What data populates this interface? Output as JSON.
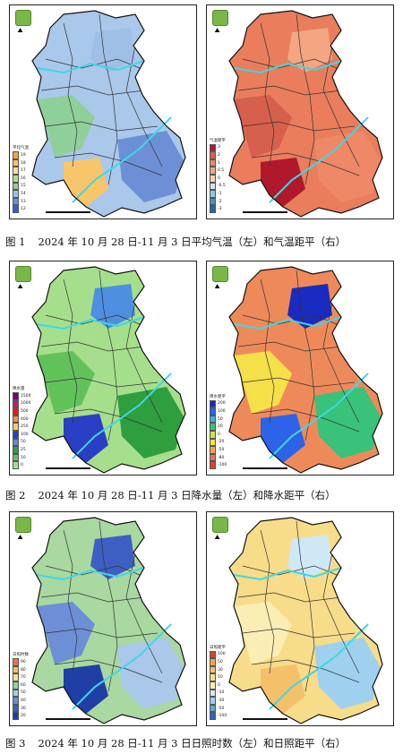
{
  "figures": [
    {
      "caption_label": "图 1",
      "caption_text": "2024 年 10 月 28 日-11 月 3 日平均气温（左）和气温距平（右）",
      "left": {
        "legend_title": "平均气温",
        "legend": [
          {
            "value": "19",
            "color": "#f4a640"
          },
          {
            "value": "18",
            "color": "#f7c66a"
          },
          {
            "value": "17",
            "color": "#f2e28c"
          },
          {
            "value": "16",
            "color": "#b7d98b"
          },
          {
            "value": "15",
            "color": "#8fcf9a"
          },
          {
            "value": "14",
            "color": "#9fbfe6"
          },
          {
            "value": "13",
            "color": "#6d8fd6"
          },
          {
            "value": "12",
            "color": "#3d5fc4"
          }
        ],
        "fill": "#a9c8ea",
        "patches": [
          "#8fcf9a",
          "#9fbfe6",
          "#f7c66a",
          "#6d8fd6"
        ]
      },
      "right": {
        "legend_title": "气温距平",
        "legend": [
          {
            "value": "3",
            "color": "#b2182b"
          },
          {
            "value": "2",
            "color": "#d6604d"
          },
          {
            "value": "1",
            "color": "#ee8866"
          },
          {
            "value": "0.5",
            "color": "#f4a582"
          },
          {
            "value": "0",
            "color": "#fbd0b9"
          },
          {
            "value": "-0.5",
            "color": "#d1e5f0"
          },
          {
            "value": "-1",
            "color": "#92c5de"
          },
          {
            "value": "-2",
            "color": "#4393c3"
          },
          {
            "value": "-3",
            "color": "#2166ac"
          }
        ],
        "fill": "#e97d5c",
        "patches": [
          "#d6604d",
          "#f4a582",
          "#b2182b",
          "#ee8866"
        ]
      }
    },
    {
      "caption_label": "图 2",
      "caption_text": "2024 年 10 月 28 日-11 月 3 日降水量（左）和降水距平（右）",
      "left": {
        "legend_title": "降水量",
        "legend": [
          {
            "value": "1500",
            "color": "#7a0177"
          },
          {
            "value": "1000",
            "color": "#c51b7d"
          },
          {
            "value": "500",
            "color": "#e31a1c"
          },
          {
            "value": "400",
            "color": "#fd8d3c"
          },
          {
            "value": "250",
            "color": "#fecc5c"
          },
          {
            "value": "100",
            "color": "#2b3fc4"
          },
          {
            "value": "50",
            "color": "#4f8fe0"
          },
          {
            "value": "25",
            "color": "#2e9e3f"
          },
          {
            "value": "10",
            "color": "#62c25a"
          },
          {
            "value": "0",
            "color": "#a6df8c"
          }
        ],
        "fill": "#a6df8c",
        "patches": [
          "#62c25a",
          "#4f8fe0",
          "#2b3fc4",
          "#2e9e3f"
        ]
      },
      "right": {
        "legend_title": "降水距平",
        "legend": [
          {
            "value": "200",
            "color": "#1a2bbf"
          },
          {
            "value": "100",
            "color": "#2c63e8"
          },
          {
            "value": "50",
            "color": "#37b3e6"
          },
          {
            "value": "20",
            "color": "#39c27a"
          },
          {
            "value": "0",
            "color": "#c8e64a"
          },
          {
            "value": "-20",
            "color": "#f5e04a"
          },
          {
            "value": "-50",
            "color": "#f5a24a"
          },
          {
            "value": "-80",
            "color": "#e8734a"
          },
          {
            "value": "-100",
            "color": "#d8432e"
          }
        ],
        "fill": "#ee8a5a",
        "patches": [
          "#f5e04a",
          "#1a2bbf",
          "#2c63e8",
          "#39c27a"
        ]
      }
    },
    {
      "caption_label": "图 3",
      "caption_text": "2024 年 10 月 28 日-11 月 3 日日照时数（左）和日照距平（右）",
      "left": {
        "legend_title": "日照时数",
        "legend": [
          {
            "value": "90",
            "color": "#e8734a"
          },
          {
            "value": "80",
            "color": "#f5c06a"
          },
          {
            "value": "70",
            "color": "#f2e28c"
          },
          {
            "value": "60",
            "color": "#8fcf9a"
          },
          {
            "value": "50",
            "color": "#a9c8ea"
          },
          {
            "value": "40",
            "color": "#6d8fd6"
          },
          {
            "value": "30",
            "color": "#3d5fc4"
          },
          {
            "value": "20",
            "color": "#1f3fa6"
          }
        ],
        "fill": "#a9d8a0",
        "patches": [
          "#6d8fd6",
          "#3d5fc4",
          "#1f3fa6",
          "#a9c8ea"
        ]
      },
      "right": {
        "legend_title": "日照距平",
        "legend": [
          {
            "value": "100",
            "color": "#d8432e"
          },
          {
            "value": "50",
            "color": "#f5a24a"
          },
          {
            "value": "30",
            "color": "#f5c06a"
          },
          {
            "value": "10",
            "color": "#f7dc8a"
          },
          {
            "value": "0",
            "color": "#fbeeb5"
          },
          {
            "value": "-10",
            "color": "#cfe8f5"
          },
          {
            "value": "-30",
            "color": "#9fd1ee"
          },
          {
            "value": "-50",
            "color": "#5aa8dc"
          },
          {
            "value": "-100",
            "color": "#2c63c8"
          }
        ],
        "fill": "#f7dc8a",
        "patches": [
          "#fbeeb5",
          "#cfe8f5",
          "#f5c06a",
          "#9fd1ee"
        ]
      }
    }
  ]
}
